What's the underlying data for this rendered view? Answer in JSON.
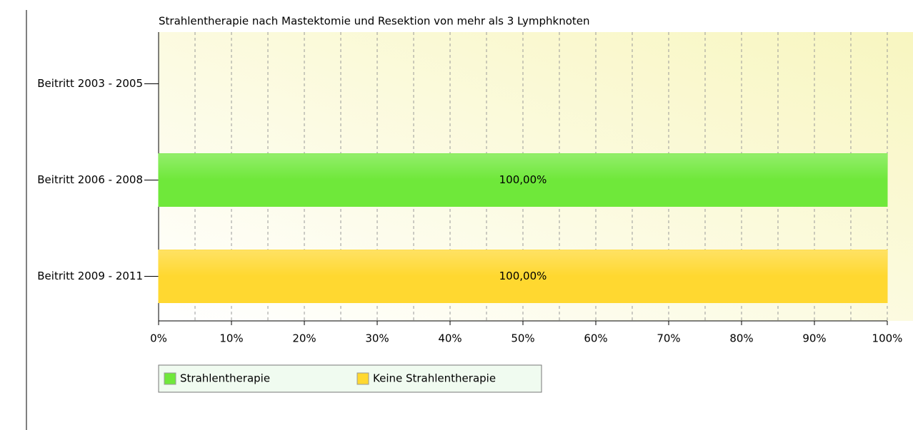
{
  "chart_data": {
    "type": "bar",
    "orientation": "horizontal",
    "stacked": true,
    "title": "Strahlentherapie nach Mastektomie und Resektion von mehr als 3 Lymphknoten",
    "categories": [
      "Beitritt 2003 - 2005",
      "Beitritt 2006 - 2008",
      "Beitritt 2009 - 2011"
    ],
    "series": [
      {
        "name": "Strahlentherapie",
        "color": "#6fe83a",
        "values": [
          null,
          100,
          null
        ],
        "value_labels": [
          null,
          "100,00%",
          null
        ]
      },
      {
        "name": "Keine Strahlentherapie",
        "color": "#ffd830",
        "values": [
          null,
          null,
          100
        ],
        "value_labels": [
          null,
          null,
          "100,00%"
        ]
      }
    ],
    "xlim": [
      0,
      100
    ],
    "xticks": [
      {
        "value": 0,
        "label": "0%"
      },
      {
        "value": 10,
        "label": "10%"
      },
      {
        "value": 20,
        "label": "20%"
      },
      {
        "value": 30,
        "label": "30%"
      },
      {
        "value": 40,
        "label": "40%"
      },
      {
        "value": 50,
        "label": "50%"
      },
      {
        "value": 60,
        "label": "60%"
      },
      {
        "value": 70,
        "label": "70%"
      },
      {
        "value": 80,
        "label": "80%"
      },
      {
        "value": 90,
        "label": "90%"
      },
      {
        "value": 100,
        "label": "100%"
      }
    ],
    "grid": true,
    "legend": "bottom-left"
  }
}
